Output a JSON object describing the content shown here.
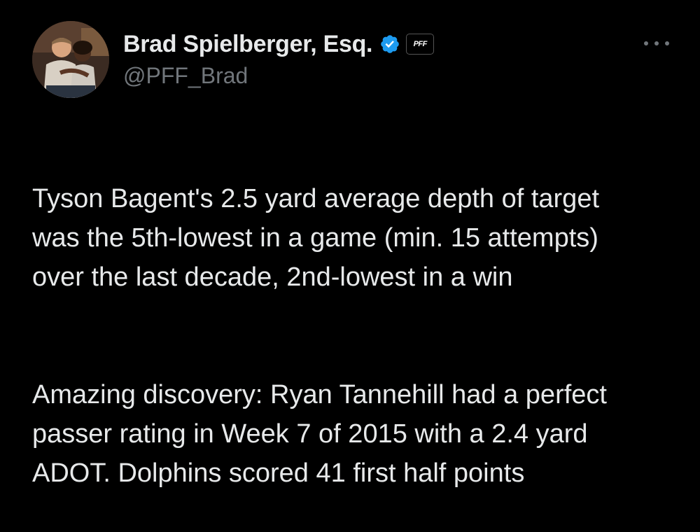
{
  "tweet": {
    "author": {
      "display_name": "Brad Spielberger, Esq.",
      "handle": "@PFF_Brad",
      "verified": true,
      "verified_icon": "verified-badge-icon",
      "verified_color": "#1d9bf0",
      "affiliation_badge": "PFF",
      "avatar": "avatar-photo"
    },
    "more_icon": "more-horizontal-icon",
    "paragraphs": [
      "Tyson Bagent's 2.5 yard average depth of target\nwas the 5th-lowest in a game (min. 15 attempts)\nover the last decade, 2nd-lowest in a win",
      "Amazing discovery: Ryan Tannehill had a perfect\npasser rating in Week 7 of 2015 with a 2.4 yard\nADOT. Dolphins scored 41 first half points"
    ]
  },
  "colors": {
    "background": "#000000",
    "text_primary": "#e7e9ea",
    "text_secondary": "#71767b",
    "accent": "#1d9bf0"
  }
}
